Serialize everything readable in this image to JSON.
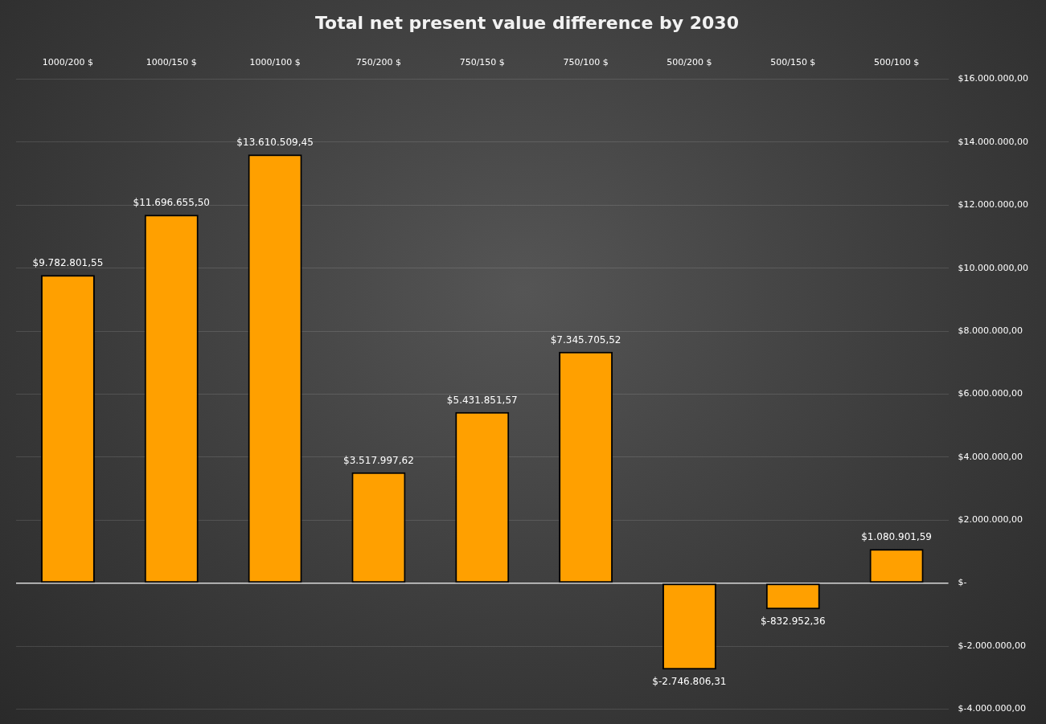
{
  "chart_data": {
    "type": "bar",
    "title": "Total net present value difference by 2030",
    "categories": [
      "1000/200 $",
      "1000/150 $",
      "1000/100 $",
      "750/200 $",
      "750/150 $",
      "750/100 $",
      "500/200 $",
      "500/150 $",
      "500/100 $"
    ],
    "values": [
      9782801.55,
      11696655.5,
      13610509.45,
      3517997.62,
      5431851.57,
      7345705.52,
      -2746806.31,
      -832952.36,
      1080901.59
    ],
    "value_labels": [
      "$9.782.801,55",
      "$11.696.655,50",
      "$13.610.509,45",
      "$3.517.997,62",
      "$5.431.851,57",
      "$7.345.705,52",
      "$-2.746.806,31",
      "$-832.952,36",
      "$1.080.901,59"
    ],
    "color": "#ffa000",
    "ylim": [
      -4000000,
      16000000
    ],
    "yticks": [
      {
        "value": -4000000,
        "label": "$-4.000.000,00"
      },
      {
        "value": -2000000,
        "label": "$-2.000.000,00"
      },
      {
        "value": 0,
        "label": "$-"
      },
      {
        "value": 2000000,
        "label": "$2.000.000,00"
      },
      {
        "value": 4000000,
        "label": "$4.000.000,00"
      },
      {
        "value": 6000000,
        "label": "$6.000.000,00"
      },
      {
        "value": 8000000,
        "label": "$8.000.000,00"
      },
      {
        "value": 10000000,
        "label": "$10.000.000,00"
      },
      {
        "value": 12000000,
        "label": "$12.000.000,00"
      },
      {
        "value": 14000000,
        "label": "$14.000.000,00"
      },
      {
        "value": 16000000,
        "label": "$16.000.000,00"
      }
    ],
    "grid": "y"
  }
}
